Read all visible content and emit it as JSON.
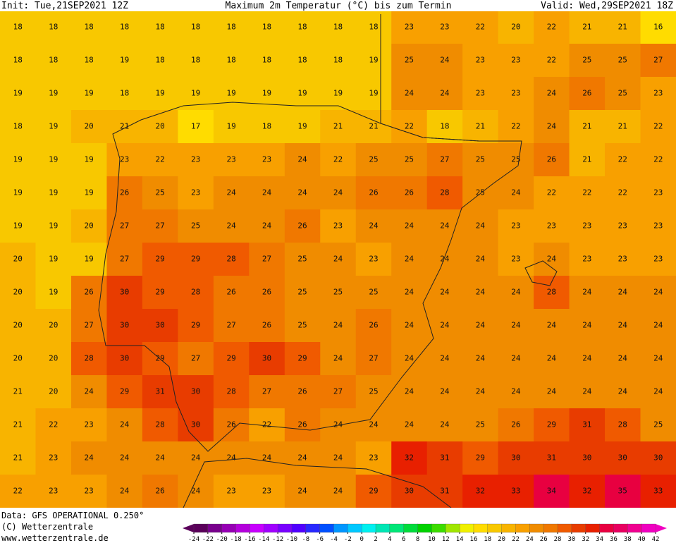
{
  "header": {
    "init": "Init: Tue,21SEP2021  12Z",
    "title": "Maximum 2m Temperatur (°C) bis zum Termin",
    "valid": "Valid: Wed,29SEP2021  18Z"
  },
  "footer": {
    "data": "Data: GFS OPERATIONAL 0.250°",
    "copyright": "(C) Wetterzentrale",
    "url": "www.wetterzentrale.de"
  },
  "colorbar": {
    "ticks": [
      -24,
      -22,
      -20,
      -18,
      -16,
      -14,
      -12,
      -10,
      -8,
      -6,
      -4,
      -2,
      0,
      2,
      4,
      6,
      8,
      10,
      12,
      14,
      16,
      18,
      20,
      22,
      24,
      26,
      28,
      30,
      32,
      34,
      36,
      38,
      40,
      42
    ],
    "colors": [
      "#5a005a",
      "#78008c",
      "#9600b4",
      "#b400dc",
      "#c800ff",
      "#a000ff",
      "#7800ff",
      "#5000ff",
      "#2828ff",
      "#0050ff",
      "#0096ff",
      "#00c8ff",
      "#00f0f0",
      "#00e6b4",
      "#00e678",
      "#00dc3c",
      "#00d200",
      "#3cdc00",
      "#a0e600",
      "#f0f000",
      "#ffdc00",
      "#f8c800",
      "#f8b400",
      "#f8a000",
      "#f08c00",
      "#f07800",
      "#f05a00",
      "#e83c00",
      "#e82000",
      "#e80040",
      "#e80060",
      "#f00090",
      "#f000c0"
    ]
  },
  "grid": [
    [
      18,
      18,
      18,
      18,
      18,
      18,
      18,
      18,
      18,
      18,
      18,
      23,
      23,
      22,
      20,
      22,
      21,
      21,
      16
    ],
    [
      18,
      18,
      18,
      19,
      18,
      18,
      18,
      18,
      18,
      18,
      19,
      25,
      24,
      23,
      23,
      22,
      25,
      25,
      27
    ],
    [
      19,
      19,
      19,
      18,
      19,
      19,
      19,
      19,
      19,
      19,
      19,
      24,
      24,
      23,
      23,
      24,
      26,
      25,
      23
    ],
    [
      18,
      19,
      20,
      21,
      20,
      17,
      19,
      18,
      19,
      21,
      21,
      22,
      18,
      21,
      22,
      24,
      21,
      21,
      22
    ],
    [
      19,
      19,
      19,
      23,
      22,
      23,
      23,
      23,
      24,
      22,
      25,
      25,
      27,
      25,
      25,
      26,
      21,
      22,
      22
    ],
    [
      19,
      19,
      19,
      26,
      25,
      23,
      24,
      24,
      24,
      24,
      26,
      26,
      28,
      25,
      24,
      22,
      22,
      22,
      23
    ],
    [
      19,
      19,
      20,
      27,
      27,
      25,
      24,
      24,
      26,
      23,
      24,
      24,
      24,
      24,
      23,
      23,
      23,
      23,
      23
    ],
    [
      20,
      19,
      19,
      27,
      29,
      29,
      28,
      27,
      25,
      24,
      23,
      24,
      24,
      24,
      23,
      24,
      23,
      23,
      23
    ],
    [
      20,
      19,
      26,
      30,
      29,
      28,
      26,
      26,
      25,
      25,
      25,
      24,
      24,
      24,
      24,
      28,
      24,
      24,
      24
    ],
    [
      20,
      20,
      27,
      30,
      30,
      29,
      27,
      26,
      25,
      24,
      26,
      24,
      24,
      24,
      24,
      24,
      24,
      24,
      24
    ],
    [
      20,
      20,
      28,
      30,
      29,
      27,
      29,
      30,
      29,
      24,
      27,
      24,
      24,
      24,
      24,
      24,
      24,
      24,
      24
    ],
    [
      21,
      20,
      24,
      29,
      31,
      30,
      28,
      27,
      26,
      27,
      25,
      24,
      24,
      24,
      24,
      24,
      24,
      24,
      24
    ],
    [
      21,
      22,
      23,
      24,
      28,
      30,
      26,
      22,
      26,
      24,
      24,
      24,
      24,
      25,
      26,
      29,
      31,
      28,
      25
    ],
    [
      21,
      23,
      24,
      24,
      24,
      24,
      24,
      24,
      24,
      24,
      23,
      32,
      31,
      29,
      30,
      31,
      30,
      30,
      30
    ],
    [
      22,
      23,
      23,
      24,
      26,
      24,
      23,
      23,
      24,
      24,
      29,
      30,
      31,
      32,
      33,
      34,
      32,
      35,
      33
    ]
  ]
}
